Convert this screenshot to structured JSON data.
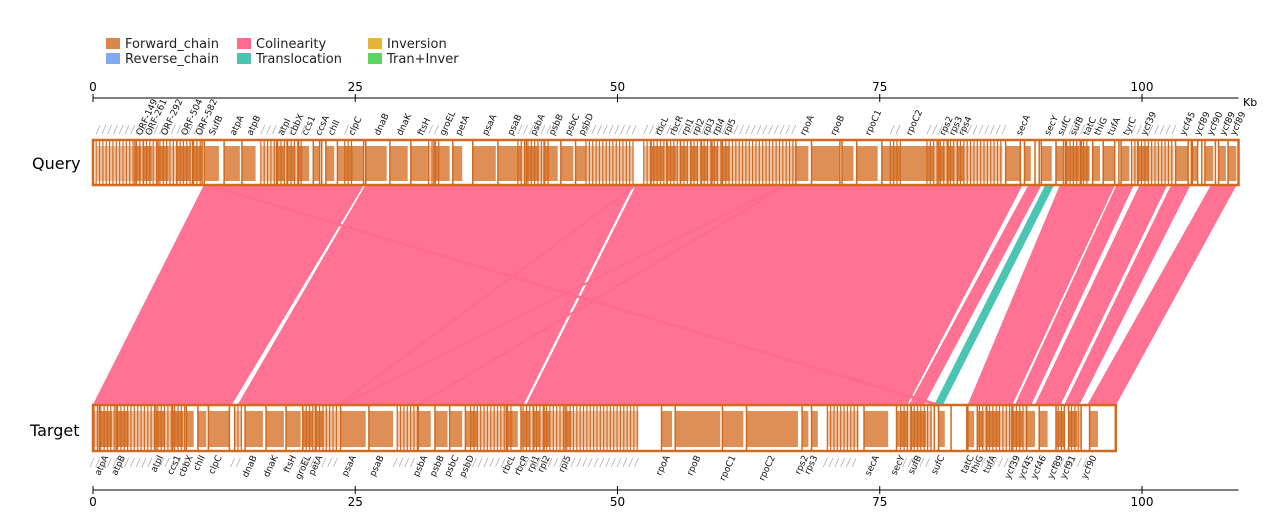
{
  "legend": [
    {
      "label": "Forward_chain",
      "color": "#d2691e",
      "fill_opacity": 0.8
    },
    {
      "label": "Reverse_chain",
      "color": "#6495ed",
      "fill_opacity": 0.8
    },
    {
      "label": "Colinearity",
      "color": "#ff6a8d",
      "fill_opacity": 1
    },
    {
      "label": "Translocation",
      "color": "#4cc4b4",
      "fill_opacity": 1
    },
    {
      "label": "Inversion",
      "color": "#e5b33a",
      "fill_opacity": 1
    },
    {
      "label": "Tran+Inver",
      "color": "#5fd35f",
      "fill_opacity": 1
    }
  ],
  "axis": {
    "unit": "Kb",
    "ticks": [
      0,
      25,
      50,
      75,
      100
    ],
    "tick_labels": [
      "0",
      "25",
      "50",
      "75",
      "100"
    ],
    "query_length_kb": 109.2,
    "target_length_kb": 97.5
  },
  "colors": {
    "gene_stroke": "#d2691e",
    "gene_fill": "#d2691e",
    "colinear": "#ff6a8d",
    "translocation": "#4cc4b4",
    "axis": "#000000"
  },
  "tracks": {
    "query": {
      "label": "Query"
    },
    "target": {
      "label": "Target"
    }
  },
  "query_genes": [
    {
      "name": "ORF-149",
      "start": 4.0,
      "end": 4.6
    },
    {
      "name": "ORF-261",
      "start": 4.8,
      "end": 5.6
    },
    {
      "name": "ORF-292",
      "start": 6.2,
      "end": 7.2
    },
    {
      "name": "ORF-504",
      "start": 8.0,
      "end": 9.2
    },
    {
      "name": "ORF-582",
      "start": 9.5,
      "end": 10.5
    },
    {
      "name": "SufB",
      "start": 10.5,
      "end": 12.0
    },
    {
      "name": "atpA",
      "start": 12.5,
      "end": 14.0
    },
    {
      "name": "atpB",
      "start": 14.2,
      "end": 15.5
    },
    {
      "name": "atpI",
      "start": 17.5,
      "end": 18.2
    },
    {
      "name": "cbbX",
      "start": 18.5,
      "end": 19.3
    },
    {
      "name": "ccs1",
      "start": 19.6,
      "end": 20.6
    },
    {
      "name": "ccsA",
      "start": 21.0,
      "end": 21.8
    },
    {
      "name": "chlI",
      "start": 22.2,
      "end": 23.0
    },
    {
      "name": "clpC",
      "start": 23.3,
      "end": 25.8
    },
    {
      "name": "dnaB",
      "start": 26.0,
      "end": 28.0
    },
    {
      "name": "dnaK",
      "start": 28.3,
      "end": 30.0
    },
    {
      "name": "ftsH",
      "start": 30.3,
      "end": 32.0
    },
    {
      "name": "groEL",
      "start": 32.5,
      "end": 34.0
    },
    {
      "name": "petA",
      "start": 34.3,
      "end": 35.2
    },
    {
      "name": "psaA",
      "start": 36.2,
      "end": 38.4
    },
    {
      "name": "psaB",
      "start": 38.6,
      "end": 40.8
    },
    {
      "name": "psbA",
      "start": 41.3,
      "end": 42.5
    },
    {
      "name": "psbB",
      "start": 43.0,
      "end": 44.3
    },
    {
      "name": "psbC",
      "start": 44.6,
      "end": 45.8
    },
    {
      "name": "psbD",
      "start": 46.0,
      "end": 47.0
    },
    {
      "name": "rbcL",
      "start": 53.2,
      "end": 54.4
    },
    {
      "name": "rbcR",
      "start": 54.7,
      "end": 55.6
    },
    {
      "name": "rpl1",
      "start": 56.0,
      "end": 56.6
    },
    {
      "name": "rpl2",
      "start": 57.0,
      "end": 57.6
    },
    {
      "name": "rpl3",
      "start": 58.0,
      "end": 58.6
    },
    {
      "name": "rpl4",
      "start": 59.0,
      "end": 59.5
    },
    {
      "name": "rpl5",
      "start": 60.0,
      "end": 60.6
    },
    {
      "name": "rpoA",
      "start": 67.0,
      "end": 68.2
    },
    {
      "name": "rpoB",
      "start": 68.5,
      "end": 72.5
    },
    {
      "name": "rpoC1",
      "start": 72.8,
      "end": 74.8
    },
    {
      "name": "rpoC2",
      "start": 75.2,
      "end": 80.2
    },
    {
      "name": "rps2",
      "start": 80.6,
      "end": 81.2
    },
    {
      "name": "rps3",
      "start": 81.5,
      "end": 82.1
    },
    {
      "name": "rps4",
      "start": 82.4,
      "end": 83.0
    },
    {
      "name": "secA",
      "start": 87.0,
      "end": 89.4
    },
    {
      "name": "secY",
      "start": 90.4,
      "end": 91.4
    },
    {
      "name": "sufC",
      "start": 91.8,
      "end": 92.5
    },
    {
      "name": "sufB",
      "start": 92.7,
      "end": 94.0
    },
    {
      "name": "tatC",
      "start": 94.2,
      "end": 95.0
    },
    {
      "name": "thiG",
      "start": 95.3,
      "end": 96.0
    },
    {
      "name": "tufA",
      "start": 96.3,
      "end": 97.5
    },
    {
      "name": "tyrC",
      "start": 98.0,
      "end": 98.8
    },
    {
      "name": "ycf39",
      "start": 99.6,
      "end": 100.6
    },
    {
      "name": "ycf45",
      "start": 103.2,
      "end": 104.4
    },
    {
      "name": "ycf89",
      "start": 104.8,
      "end": 105.6
    },
    {
      "name": "ycf90",
      "start": 106.0,
      "end": 106.8
    },
    {
      "name": "ycf89",
      "start": 107.2,
      "end": 108.0
    },
    {
      "name": "ycf89",
      "start": 108.2,
      "end": 109.0
    }
  ],
  "target_genes": [
    {
      "name": "atpA",
      "start": 0.6,
      "end": 1.8
    },
    {
      "name": "atpB",
      "start": 2.2,
      "end": 3.4
    },
    {
      "name": "atpI",
      "start": 6.0,
      "end": 6.8
    },
    {
      "name": "ccs1",
      "start": 7.6,
      "end": 8.6
    },
    {
      "name": "cbbX",
      "start": 8.9,
      "end": 9.6
    },
    {
      "name": "chlI",
      "start": 10.0,
      "end": 10.8
    },
    {
      "name": "clpC",
      "start": 11.0,
      "end": 13.0
    },
    {
      "name": "dnaB",
      "start": 14.5,
      "end": 16.2
    },
    {
      "name": "dnaK",
      "start": 16.5,
      "end": 18.2
    },
    {
      "name": "ftsH",
      "start": 18.4,
      "end": 19.8
    },
    {
      "name": "groEL",
      "start": 20.0,
      "end": 21.0
    },
    {
      "name": "petA",
      "start": 21.2,
      "end": 22.0
    },
    {
      "name": "psaA",
      "start": 23.6,
      "end": 26.0
    },
    {
      "name": "psaB",
      "start": 26.3,
      "end": 28.6
    },
    {
      "name": "psbA",
      "start": 31.0,
      "end": 32.2
    },
    {
      "name": "psbB",
      "start": 32.6,
      "end": 33.8
    },
    {
      "name": "psbC",
      "start": 34.0,
      "end": 35.2
    },
    {
      "name": "psbD",
      "start": 35.5,
      "end": 36.6
    },
    {
      "name": "rbcL",
      "start": 39.4,
      "end": 40.5
    },
    {
      "name": "rbcR",
      "start": 40.8,
      "end": 41.6
    },
    {
      "name": "rpl1",
      "start": 42.0,
      "end": 42.6
    },
    {
      "name": "rpl2",
      "start": 43.0,
      "end": 43.6
    },
    {
      "name": "rpl5",
      "start": 45.0,
      "end": 45.6
    },
    {
      "name": "rpoA",
      "start": 54.2,
      "end": 55.2
    },
    {
      "name": "rpoB",
      "start": 55.5,
      "end": 59.8
    },
    {
      "name": "rpoC1",
      "start": 60.0,
      "end": 62.0
    },
    {
      "name": "rpoC2",
      "start": 62.3,
      "end": 67.2
    },
    {
      "name": "rps2",
      "start": 67.6,
      "end": 68.2
    },
    {
      "name": "rps3",
      "start": 68.5,
      "end": 69.1
    },
    {
      "name": "secA",
      "start": 73.5,
      "end": 75.8
    },
    {
      "name": "secY",
      "start": 76.6,
      "end": 77.6
    },
    {
      "name": "sufB",
      "start": 78.0,
      "end": 79.4
    },
    {
      "name": "sufC",
      "start": 80.6,
      "end": 81.2
    },
    {
      "name": "tatC",
      "start": 83.4,
      "end": 84.0
    },
    {
      "name": "thiG",
      "start": 84.3,
      "end": 84.9
    },
    {
      "name": "tufA",
      "start": 85.2,
      "end": 86.4
    },
    {
      "name": "ycf39",
      "start": 87.6,
      "end": 88.6
    },
    {
      "name": "ycf45",
      "start": 89.0,
      "end": 89.8
    },
    {
      "name": "ycf46",
      "start": 90.2,
      "end": 91.0
    },
    {
      "name": "ycf89",
      "start": 91.8,
      "end": 92.6
    },
    {
      "name": "ycf91",
      "start": 93.0,
      "end": 93.8
    },
    {
      "name": "ycf90",
      "start": 95.0,
      "end": 95.8
    }
  ],
  "query_dense_ranges": [
    [
      0.3,
      10.3
    ],
    [
      16.0,
      20.0
    ],
    [
      24.0,
      24.8
    ],
    [
      32.0,
      33.0
    ],
    [
      40.5,
      43.5
    ],
    [
      47.0,
      51.5
    ],
    [
      52.5,
      60.0
    ],
    [
      60.0,
      67.0
    ],
    [
      76.0,
      77.0
    ],
    [
      79.5,
      86.7
    ],
    [
      92.5,
      95.0
    ],
    [
      99.0,
      103.0
    ]
  ],
  "target_dense_ranges": [
    [
      0.1,
      9.0
    ],
    [
      13.5,
      14.2
    ],
    [
      20.0,
      23.5
    ],
    [
      29.0,
      31.0
    ],
    [
      36.0,
      40.0
    ],
    [
      41.0,
      52.0
    ],
    [
      70.0,
      73.0
    ],
    [
      77.0,
      80.0
    ],
    [
      84.5,
      89.0
    ],
    [
      92.0,
      95.0
    ]
  ],
  "query_gaps": [
    [
      10.4,
      10.6
    ],
    [
      21.6,
      21.8
    ],
    [
      25.8,
      26.0
    ],
    [
      71.2,
      71.4
    ],
    [
      88.4,
      88.8
    ],
    [
      89.8,
      90.2
    ],
    [
      97.4,
      97.8
    ],
    [
      104.4,
      104.7
    ],
    [
      105.3,
      105.7
    ],
    [
      107.0,
      107.3
    ]
  ],
  "target_gaps": [
    [
      13.0,
      13.5
    ],
    [
      80.2,
      80.6
    ],
    [
      81.8,
      83.3
    ],
    [
      92.6,
      93.0
    ],
    [
      94.2,
      95.0
    ]
  ],
  "links": [
    {
      "type": "colinear",
      "q": [
        10.6,
        25.8
      ],
      "t": [
        0.0,
        13.2
      ]
    },
    {
      "type": "colinear",
      "q": [
        26.0,
        51.5
      ],
      "t": [
        13.8,
        41.0
      ]
    },
    {
      "type": "colinear",
      "q": [
        51.8,
        88.6
      ],
      "t": [
        41.3,
        77.6
      ]
    },
    {
      "type": "colinear",
      "q": [
        89.2,
        90.4
      ],
      "t": [
        77.8,
        79.2
      ]
    },
    {
      "type": "translocation",
      "q": [
        90.8,
        91.6
      ],
      "t": [
        80.2,
        81.0
      ]
    },
    {
      "type": "colinear",
      "q": [
        92.2,
        97.4
      ],
      "t": [
        83.4,
        87.6
      ]
    },
    {
      "type": "colinear",
      "q": [
        97.6,
        99.2
      ],
      "t": [
        87.9,
        89.4
      ]
    },
    {
      "type": "colinear",
      "q": [
        99.8,
        102.4
      ],
      "t": [
        89.8,
        92.2
      ]
    },
    {
      "type": "colinear",
      "q": [
        102.8,
        104.6
      ],
      "t": [
        92.6,
        94.0
      ]
    },
    {
      "type": "colinear",
      "q": [
        106.6,
        109.0
      ],
      "t": [
        94.8,
        97.5
      ]
    },
    {
      "type": "colinear",
      "q": [
        10.6,
        11.2
      ],
      "t": [
        80.2,
        81.0
      ]
    },
    {
      "type": "colinear",
      "q": [
        51.6,
        51.9
      ],
      "t": [
        23.3,
        23.6
      ]
    },
    {
      "type": "colinear",
      "q": [
        65.8,
        66.1
      ],
      "t": [
        23.5,
        23.8
      ]
    },
    {
      "type": "colinear",
      "q": [
        66.0,
        66.3
      ],
      "t": [
        30.8,
        31.1
      ]
    }
  ]
}
